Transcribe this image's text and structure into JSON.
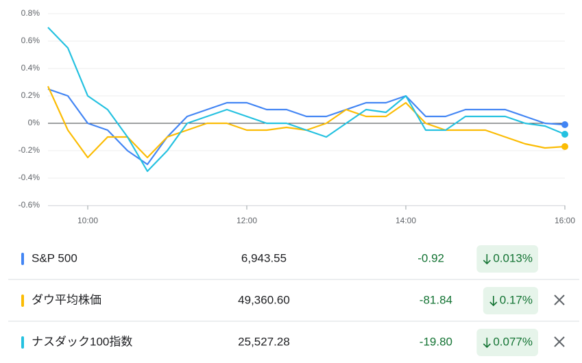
{
  "chart_data": {
    "type": "line",
    "x": [
      9.5,
      9.75,
      10,
      10.25,
      10.5,
      10.75,
      11,
      11.25,
      11.5,
      11.75,
      12,
      12.25,
      12.5,
      12.75,
      13,
      13.25,
      13.5,
      13.75,
      14,
      14.25,
      14.5,
      14.75,
      15,
      15.25,
      15.5,
      15.75,
      16
    ],
    "xlim": [
      9.5,
      16
    ],
    "xticks": [
      {
        "value": 10,
        "label": "10:00"
      },
      {
        "value": 12,
        "label": "12:00"
      },
      {
        "value": 14,
        "label": "14:00"
      },
      {
        "value": 16,
        "label": "16:00"
      }
    ],
    "ylim": [
      -0.6,
      0.8
    ],
    "yticks": [
      {
        "value": -0.6,
        "label": "-0.6%"
      },
      {
        "value": -0.4,
        "label": "-0.4%"
      },
      {
        "value": -0.2,
        "label": "-0.2%"
      },
      {
        "value": 0,
        "label": "0%"
      },
      {
        "value": 0.2,
        "label": "0.2%"
      },
      {
        "value": 0.4,
        "label": "0.4%"
      },
      {
        "value": 0.6,
        "label": "0.6%"
      },
      {
        "value": 0.8,
        "label": "0.8%"
      }
    ],
    "grid": true,
    "series": [
      {
        "name": "S&P 500",
        "color": "#4285f4",
        "price": "6,943.55",
        "change": "-0.92",
        "change_pct": "0.013%",
        "values": [
          0.25,
          0.2,
          0.0,
          -0.05,
          -0.2,
          -0.3,
          -0.1,
          0.05,
          0.1,
          0.15,
          0.15,
          0.1,
          0.1,
          0.05,
          0.05,
          0.1,
          0.15,
          0.15,
          0.2,
          0.05,
          0.05,
          0.1,
          0.1,
          0.1,
          0.05,
          0.0,
          -0.01
        ]
      },
      {
        "name": "ダウ平均株価",
        "color": "#fbbc04",
        "price": "49,360.60",
        "change": "-81.84",
        "change_pct": "0.17%",
        "values": [
          0.27,
          -0.05,
          -0.25,
          -0.1,
          -0.1,
          -0.25,
          -0.1,
          -0.05,
          0.0,
          0.0,
          -0.05,
          -0.05,
          -0.03,
          -0.05,
          0.0,
          0.1,
          0.05,
          0.05,
          0.15,
          0.0,
          -0.05,
          -0.05,
          -0.05,
          -0.1,
          -0.15,
          -0.18,
          -0.17
        ]
      },
      {
        "name": "ナスダック100指数",
        "color": "#24c1e0",
        "price": "25,527.28",
        "change": "-19.80",
        "change_pct": "0.077%",
        "values": [
          0.7,
          0.55,
          0.2,
          0.1,
          -0.1,
          -0.35,
          -0.2,
          0.0,
          0.05,
          0.1,
          0.05,
          0.0,
          0.0,
          -0.05,
          -0.1,
          0.0,
          0.1,
          0.08,
          0.2,
          -0.05,
          -0.05,
          0.05,
          0.05,
          0.05,
          0.0,
          -0.02,
          -0.08
        ]
      }
    ]
  }
}
